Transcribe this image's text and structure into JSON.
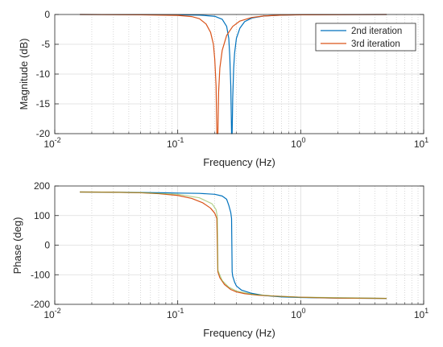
{
  "chart_data": [
    {
      "type": "line",
      "ylabel": "Magnitude (dB)",
      "xlabel": "Frequency (Hz)",
      "x_scale": "log",
      "xlim": [
        0.01,
        10
      ],
      "ylim": [
        -20,
        0
      ],
      "grid": true,
      "x_ticks": [
        {
          "value": 0.01,
          "base": "10",
          "exp": "-2"
        },
        {
          "value": 0.1,
          "base": "10",
          "exp": "-1"
        },
        {
          "value": 1,
          "base": "10",
          "exp": "0"
        },
        {
          "value": 10,
          "base": "10",
          "exp": "1"
        }
      ],
      "y_ticks": [
        0,
        -5,
        -10,
        -15,
        -20
      ],
      "legend": {
        "position": "top-right",
        "entries": [
          "2nd iteration",
          "3rd iteration"
        ]
      },
      "series": [
        {
          "name": "2nd iteration",
          "color": "#0072BD",
          "points": [
            [
              0.016,
              0
            ],
            [
              0.05,
              -0.02
            ],
            [
              0.1,
              -0.05
            ],
            [
              0.15,
              -0.1
            ],
            [
              0.2,
              -0.3
            ],
            [
              0.23,
              -0.8
            ],
            [
              0.25,
              -2
            ],
            [
              0.26,
              -4
            ],
            [
              0.265,
              -7
            ],
            [
              0.27,
              -12
            ],
            [
              0.274,
              -20
            ],
            [
              0.277,
              -20
            ],
            [
              0.28,
              -14
            ],
            [
              0.285,
              -9
            ],
            [
              0.29,
              -6.5
            ],
            [
              0.3,
              -4
            ],
            [
              0.32,
              -2.3
            ],
            [
              0.35,
              -1.2
            ],
            [
              0.4,
              -0.6
            ],
            [
              0.5,
              -0.25
            ],
            [
              0.7,
              -0.1
            ],
            [
              1,
              -0.04
            ],
            [
              2,
              -0.02
            ],
            [
              5,
              0
            ]
          ]
        },
        {
          "name": "3rd iteration",
          "color": "#D95319",
          "points": [
            [
              0.016,
              0
            ],
            [
              0.05,
              -0.05
            ],
            [
              0.1,
              -0.15
            ],
            [
              0.13,
              -0.35
            ],
            [
              0.15,
              -0.7
            ],
            [
              0.17,
              -1.6
            ],
            [
              0.185,
              -3
            ],
            [
              0.195,
              -5
            ],
            [
              0.2,
              -7.5
            ],
            [
              0.205,
              -12
            ],
            [
              0.208,
              -20
            ],
            [
              0.212,
              -20
            ],
            [
              0.215,
              -13
            ],
            [
              0.22,
              -9
            ],
            [
              0.23,
              -6
            ],
            [
              0.25,
              -3.5
            ],
            [
              0.28,
              -2
            ],
            [
              0.32,
              -1.1
            ],
            [
              0.4,
              -0.5
            ],
            [
              0.5,
              -0.25
            ],
            [
              0.7,
              -0.1
            ],
            [
              1,
              -0.05
            ],
            [
              5,
              0
            ]
          ]
        }
      ]
    },
    {
      "type": "line",
      "ylabel": "Phase (deg)",
      "xlabel": "Frequency (Hz)",
      "x_scale": "log",
      "xlim": [
        0.01,
        10
      ],
      "ylim": [
        -200,
        200
      ],
      "grid": true,
      "x_ticks": [
        {
          "value": 0.01,
          "base": "10",
          "exp": "-2"
        },
        {
          "value": 0.1,
          "base": "10",
          "exp": "-1"
        },
        {
          "value": 1,
          "base": "10",
          "exp": "0"
        },
        {
          "value": 10,
          "base": "10",
          "exp": "1"
        }
      ],
      "y_ticks": [
        200,
        100,
        0,
        -100,
        -200
      ],
      "series": [
        {
          "color": "#0072BD",
          "points": [
            [
              0.016,
              179.5
            ],
            [
              0.03,
              179
            ],
            [
              0.05,
              178
            ],
            [
              0.08,
              177
            ],
            [
              0.1,
              176
            ],
            [
              0.15,
              175
            ],
            [
              0.2,
              172
            ],
            [
              0.23,
              166
            ],
            [
              0.25,
              155
            ],
            [
              0.26,
              135
            ],
            [
              0.27,
              110
            ],
            [
              0.274,
              90
            ],
            [
              0.277,
              -90
            ],
            [
              0.28,
              -105
            ],
            [
              0.29,
              -125
            ],
            [
              0.3,
              -138
            ],
            [
              0.33,
              -152
            ],
            [
              0.4,
              -163
            ],
            [
              0.5,
              -170
            ],
            [
              0.7,
              -175
            ],
            [
              1,
              -177
            ],
            [
              2,
              -179
            ],
            [
              5,
              -180
            ]
          ]
        },
        {
          "color": "#D95319",
          "points": [
            [
              0.016,
              179.5
            ],
            [
              0.03,
              179
            ],
            [
              0.05,
              177
            ],
            [
              0.07,
              174
            ],
            [
              0.1,
              168
            ],
            [
              0.13,
              158
            ],
            [
              0.16,
              143
            ],
            [
              0.185,
              125
            ],
            [
              0.2,
              108
            ],
            [
              0.208,
              90
            ],
            [
              0.212,
              -90
            ],
            [
              0.22,
              -110
            ],
            [
              0.24,
              -133
            ],
            [
              0.27,
              -150
            ],
            [
              0.3,
              -158
            ],
            [
              0.35,
              -164
            ],
            [
              0.45,
              -169
            ],
            [
              0.6,
              -172
            ],
            [
              1,
              -176
            ],
            [
              2,
              -179
            ],
            [
              5,
              -180
            ]
          ]
        },
        {
          "color": "#77AC30",
          "opacity": 0.55,
          "points": [
            [
              0.016,
              179.5
            ],
            [
              0.03,
              179
            ],
            [
              0.05,
              177.5
            ],
            [
              0.1,
              172
            ],
            [
              0.15,
              160
            ],
            [
              0.19,
              140
            ],
            [
              0.205,
              120
            ],
            [
              0.21,
              95
            ],
            [
              0.212,
              -85
            ],
            [
              0.23,
              -120
            ],
            [
              0.26,
              -142
            ],
            [
              0.3,
              -155
            ],
            [
              0.4,
              -166
            ],
            [
              0.6,
              -172
            ],
            [
              1,
              -176
            ],
            [
              5,
              -180
            ]
          ]
        }
      ]
    }
  ]
}
